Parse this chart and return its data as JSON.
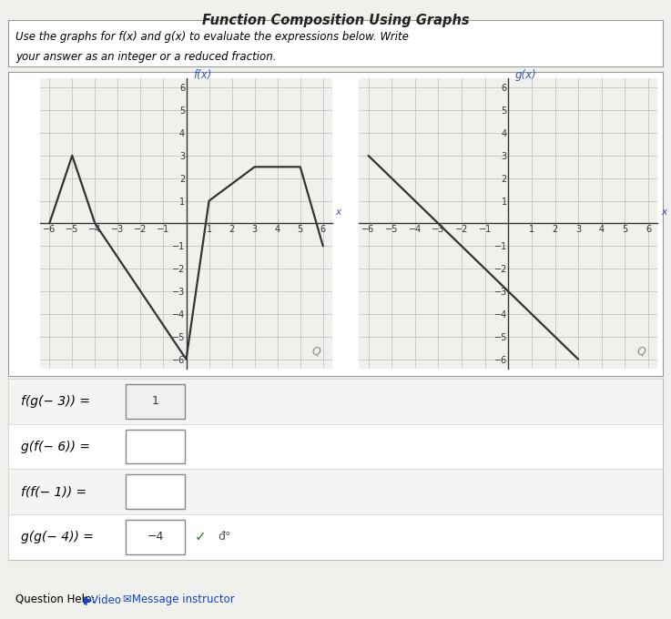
{
  "title": "Function Composition Using Graphs",
  "instruction_line1": "Use the graphs for f(x) and g(x) to evaluate the expressions below. Write",
  "instruction_line2": "your answer as an integer or a reduced fraction.",
  "bg_color": "#f0f0ec",
  "grid_color": "#bbbbbb",
  "f_points": [
    [
      -6,
      0
    ],
    [
      -5,
      3
    ],
    [
      -4,
      0
    ],
    [
      0,
      -6
    ],
    [
      1,
      1
    ],
    [
      3,
      2.5
    ],
    [
      5,
      2.5
    ],
    [
      6,
      -1
    ]
  ],
  "g_points": [
    [
      -6,
      3
    ],
    [
      -3,
      0
    ],
    [
      0,
      -3
    ],
    [
      3,
      -6
    ]
  ],
  "f_label": "f(x)",
  "g_label": "g(x)",
  "x_label": "x",
  "xlim": [
    -6,
    6
  ],
  "ylim": [
    -6,
    6
  ],
  "line_color": "#333333",
  "label_color_f": "#3355bb",
  "label_color_g": "#3355bb",
  "answers": [
    {
      "expr": "f(g(− 3)) =",
      "val": "1",
      "filled": true,
      "correct": false
    },
    {
      "expr": "g(f(− 6)) =",
      "val": "",
      "filled": false,
      "correct": false
    },
    {
      "expr": "f(f(− 1)) =",
      "val": "",
      "filled": false,
      "correct": false
    },
    {
      "expr": "g(g(− 4)) =",
      "val": "−4",
      "filled": true,
      "correct": true
    }
  ],
  "outer_bg": "#e8e8e4",
  "row_bg": "#ffffff",
  "box_border": "#aaaaaa",
  "tick_fontsize": 7,
  "label_fontsize": 8
}
